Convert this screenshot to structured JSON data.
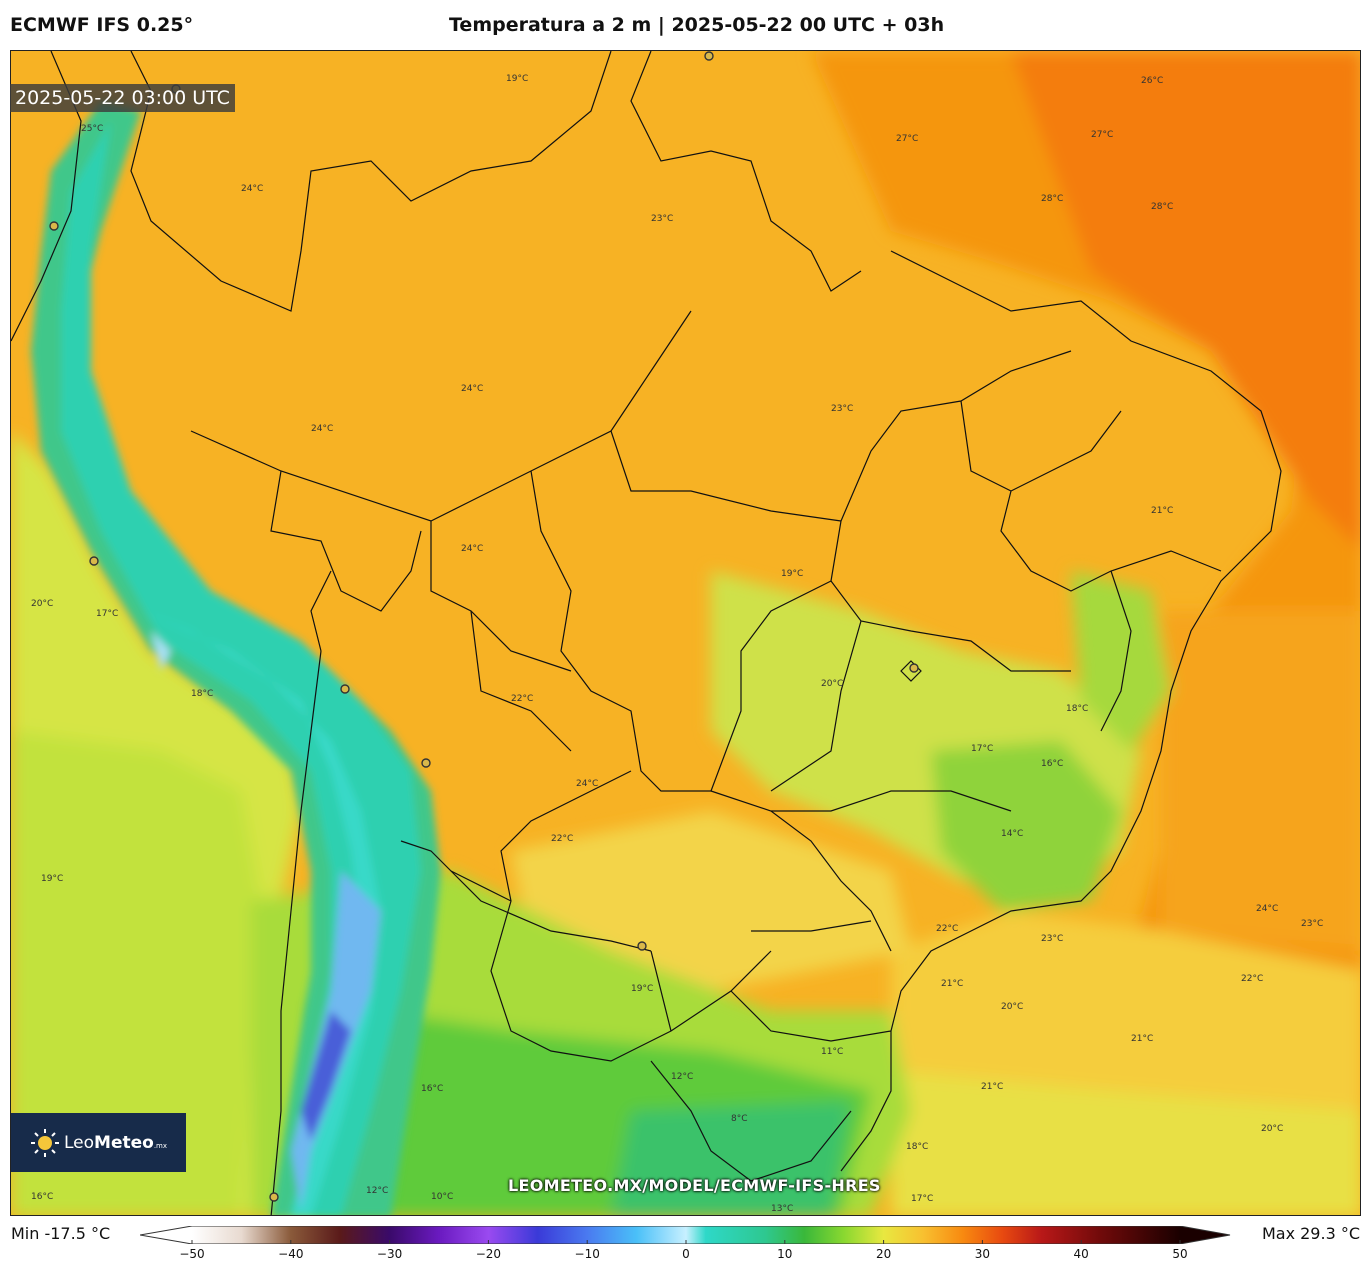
{
  "header": {
    "model": "ECMWF IFS 0.25°",
    "title": "Temperatura a 2 m | 2025-05-22 00 UTC + 03h"
  },
  "map": {
    "valid_time": "2025-05-22 03:00 UTC",
    "watermark": "LEOMETEO.MX/MODEL/ECMWF-IFS-HRES",
    "logo": {
      "brand": "Leo",
      "brand_bold": "Meteo",
      "suffix": ".mx"
    },
    "contour_labels": [
      "25°C",
      "19°C",
      "24°C",
      "27°C",
      "26°C",
      "28°C",
      "23°C",
      "22°C",
      "21°C",
      "20°C",
      "17°C",
      "18°C",
      "16°C",
      "14°C",
      "12°C",
      "11°C",
      "13°C",
      "8°C",
      "10°C"
    ],
    "colors": {
      "ocean_warm": "#f58f10",
      "land_warm": "#f7b224",
      "land_mild": "#f5d84a",
      "cool": "#b6e23c",
      "green": "#4fc33d",
      "andes_teal": "#36d2a5",
      "andes_cold": "#4a62d8"
    }
  },
  "colorbar": {
    "min_label": "Min -17.5 °C",
    "max_label": "Max 29.3 °C",
    "ticks": [
      "−50",
      "−40",
      "−30",
      "−20",
      "−10",
      "0",
      "10",
      "20",
      "30",
      "40",
      "50"
    ],
    "tick_values": [
      -50,
      -40,
      -30,
      -20,
      -10,
      0,
      10,
      20,
      30,
      40,
      50
    ],
    "stops": [
      {
        "v": -50,
        "c": "#ffffff"
      },
      {
        "v": -45,
        "c": "#e8dad0"
      },
      {
        "v": -40,
        "c": "#8a5a3a"
      },
      {
        "v": -35,
        "c": "#5a1a1a"
      },
      {
        "v": -30,
        "c": "#3a0a6a"
      },
      {
        "v": -25,
        "c": "#6a1ac0"
      },
      {
        "v": -20,
        "c": "#9a4af0"
      },
      {
        "v": -15,
        "c": "#3a3ad8"
      },
      {
        "v": -10,
        "c": "#4a7af0"
      },
      {
        "v": -5,
        "c": "#4ac0f8"
      },
      {
        "v": 0,
        "c": "#c8f0ff"
      },
      {
        "v": 2,
        "c": "#2ed8c8"
      },
      {
        "v": 8,
        "c": "#2ec890"
      },
      {
        "v": 12,
        "c": "#3ab83a"
      },
      {
        "v": 16,
        "c": "#8ad830"
      },
      {
        "v": 20,
        "c": "#e8e840"
      },
      {
        "v": 24,
        "c": "#f8c030"
      },
      {
        "v": 28,
        "c": "#f88a10"
      },
      {
        "v": 32,
        "c": "#e84a10"
      },
      {
        "v": 36,
        "c": "#b81818"
      },
      {
        "v": 42,
        "c": "#700a0a"
      },
      {
        "v": 50,
        "c": "#1a0000"
      }
    ]
  }
}
